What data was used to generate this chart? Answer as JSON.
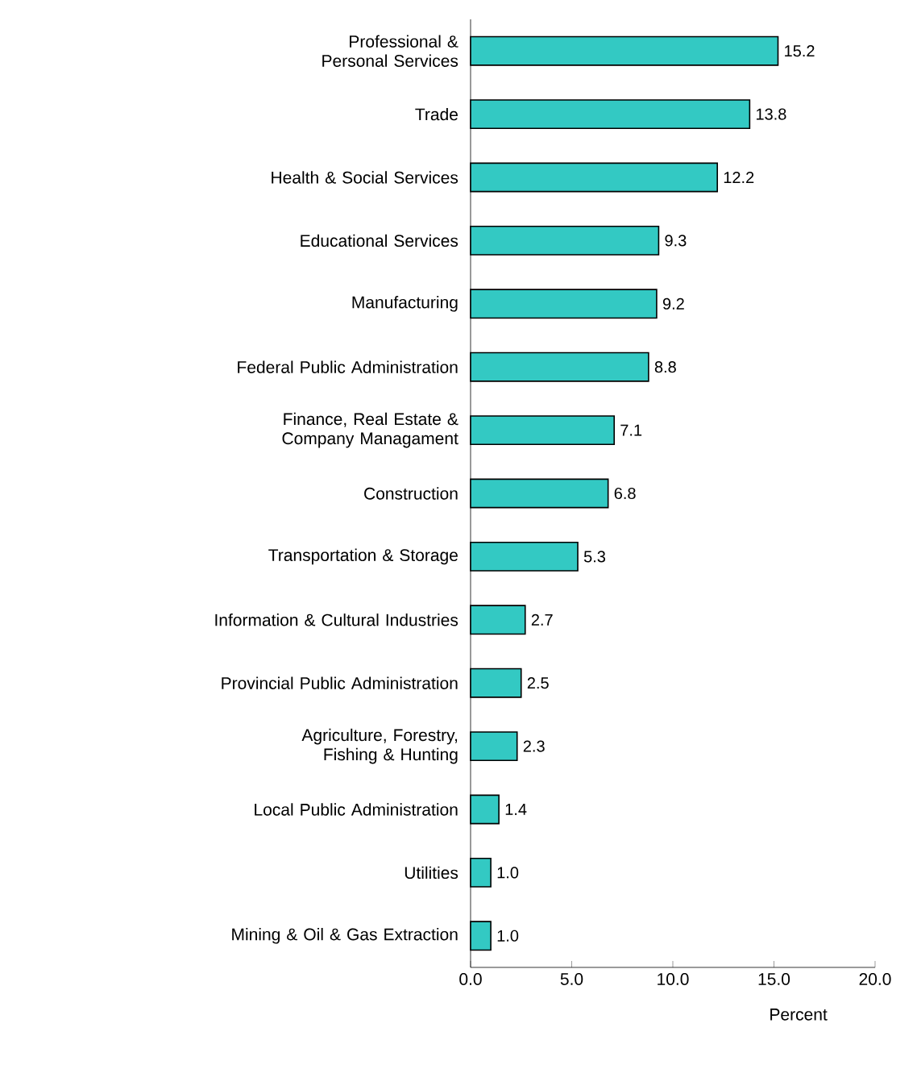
{
  "chart_data": {
    "type": "bar",
    "orientation": "horizontal",
    "xlabel": "Percent",
    "categories": [
      "Professional & Personal Services",
      "Trade",
      "Health & Social Services",
      "Educational Services",
      "Manufacturing",
      "Federal Public Administration",
      "Finance, Real Estate & Company Managament",
      "Construction",
      "Transportation & Storage",
      "Information & Cultural Industries",
      "Provincial Public Administration",
      "Agriculture, Forestry, Fishing & Hunting",
      "Local Public Administration",
      "Utilities",
      "Mining & Oil & Gas Extraction"
    ],
    "values": [
      15.2,
      13.8,
      12.2,
      9.3,
      9.2,
      8.8,
      7.1,
      6.8,
      5.3,
      2.7,
      2.5,
      2.3,
      1.4,
      1.0,
      1.0
    ],
    "value_labels": [
      "15.2",
      "13.8",
      "12.2",
      "9.3",
      "9.2",
      "8.8",
      "7.1",
      "6.8",
      "5.3",
      "2.7",
      "2.5",
      "2.3",
      "1.4",
      "1.0",
      "1.0"
    ],
    "color": "#33c9c3",
    "xlim": [
      0,
      20
    ],
    "xticks": [
      {
        "value": 0,
        "label": "0.0"
      },
      {
        "value": 5,
        "label": "5.0"
      },
      {
        "value": 10,
        "label": "10.0"
      },
      {
        "value": 15,
        "label": "15.0"
      },
      {
        "value": 20,
        "label": "20.0"
      }
    ],
    "grid": false
  }
}
